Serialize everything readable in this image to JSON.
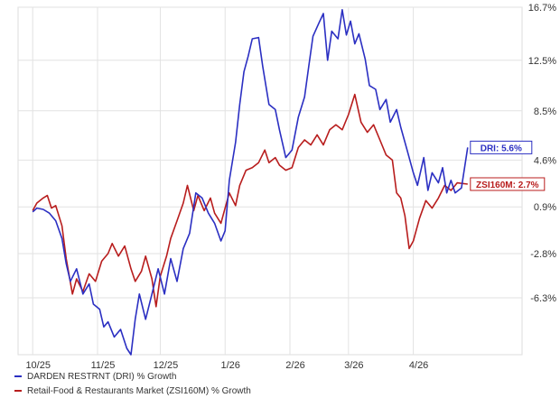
{
  "chart_data": {
    "type": "line",
    "title": "",
    "xlabel": "",
    "ylabel": "",
    "x_tick_labels": [
      "10/25",
      "11/25",
      "12/25",
      "1/26",
      "2/26",
      "3/26",
      "4/26"
    ],
    "y_tick_labels": [
      "16.7%",
      "12.5%",
      "8.5%",
      "4.6%",
      "0.9%",
      "-2.8%",
      "-6.3%"
    ],
    "y_tick_values": [
      16.7,
      12.5,
      8.5,
      4.6,
      0.9,
      -2.8,
      -6.3
    ],
    "ylim": [
      -10.8,
      16.7
    ],
    "grid": true,
    "legend_position": "bottom-left",
    "series": [
      {
        "name": "DARDEN RESTRNT (DRI) % Growth",
        "color": "#2b2fc2",
        "end_label": "DRI: 5.6%",
        "points": [
          [
            "2025-10-01",
            0.5
          ],
          [
            "2025-10-03",
            0.8
          ],
          [
            "2025-10-06",
            0.7
          ],
          [
            "2025-10-09",
            0.4
          ],
          [
            "2025-10-12",
            -0.2
          ],
          [
            "2025-10-15",
            -1.6
          ],
          [
            "2025-10-17",
            -3.6
          ],
          [
            "2025-10-19",
            -5.0
          ],
          [
            "2025-10-22",
            -4.0
          ],
          [
            "2025-10-25",
            -6.0
          ],
          [
            "2025-10-28",
            -5.2
          ],
          [
            "2025-10-30",
            -6.8
          ],
          [
            "2025-11-02",
            -7.2
          ],
          [
            "2025-11-04",
            -8.6
          ],
          [
            "2025-11-06",
            -8.2
          ],
          [
            "2025-11-09",
            -9.4
          ],
          [
            "2025-11-12",
            -8.8
          ],
          [
            "2025-11-15",
            -10.3
          ],
          [
            "2025-11-17",
            -10.8
          ],
          [
            "2025-11-19",
            -8.0
          ],
          [
            "2025-11-21",
            -6.0
          ],
          [
            "2025-11-24",
            -8.0
          ],
          [
            "2025-11-27",
            -6.0
          ],
          [
            "2025-11-30",
            -4.0
          ],
          [
            "2025-12-03",
            -6.0
          ],
          [
            "2025-12-06",
            -3.2
          ],
          [
            "2025-12-09",
            -5.0
          ],
          [
            "2025-12-12",
            -2.4
          ],
          [
            "2025-12-15",
            -1.2
          ],
          [
            "2025-12-18",
            2.0
          ],
          [
            "2025-12-21",
            1.6
          ],
          [
            "2025-12-24",
            0.4
          ],
          [
            "2025-12-27",
            -0.4
          ],
          [
            "2025-12-30",
            -1.8
          ],
          [
            "2026-01-01",
            -1.0
          ],
          [
            "2026-01-03",
            3.0
          ],
          [
            "2026-01-06",
            6.0
          ],
          [
            "2026-01-08",
            9.0
          ],
          [
            "2026-01-10",
            11.6
          ],
          [
            "2026-01-12",
            12.8
          ],
          [
            "2026-01-14",
            14.2
          ],
          [
            "2026-01-17",
            14.3
          ],
          [
            "2026-01-19",
            12.0
          ],
          [
            "2026-01-22",
            9.0
          ],
          [
            "2026-01-25",
            8.6
          ],
          [
            "2026-01-27",
            7.0
          ],
          [
            "2026-01-30",
            4.8
          ],
          [
            "2026-02-02",
            5.4
          ],
          [
            "2026-02-05",
            8.0
          ],
          [
            "2026-02-08",
            9.6
          ],
          [
            "2026-02-10",
            12.0
          ],
          [
            "2026-02-12",
            14.4
          ],
          [
            "2026-02-15",
            15.5
          ],
          [
            "2026-02-17",
            16.2
          ],
          [
            "2026-02-19",
            12.5
          ],
          [
            "2026-02-21",
            14.8
          ],
          [
            "2026-02-24",
            14.2
          ],
          [
            "2026-02-26",
            16.5
          ],
          [
            "2026-02-28",
            14.5
          ],
          [
            "2026-03-02",
            15.6
          ],
          [
            "2026-03-04",
            13.8
          ],
          [
            "2026-03-06",
            14.6
          ],
          [
            "2026-03-09",
            12.6
          ],
          [
            "2026-03-11",
            10.5
          ],
          [
            "2026-03-14",
            10.2
          ],
          [
            "2026-03-16",
            8.6
          ],
          [
            "2026-03-19",
            9.4
          ],
          [
            "2026-03-21",
            7.6
          ],
          [
            "2026-03-24",
            8.6
          ],
          [
            "2026-03-26",
            7.2
          ],
          [
            "2026-03-29",
            5.4
          ],
          [
            "2026-04-01",
            3.6
          ],
          [
            "2026-04-03",
            2.6
          ],
          [
            "2026-04-06",
            4.8
          ],
          [
            "2026-04-08",
            2.2
          ],
          [
            "2026-04-10",
            3.6
          ],
          [
            "2026-04-13",
            2.8
          ],
          [
            "2026-04-15",
            4.0
          ],
          [
            "2026-04-17",
            2.0
          ],
          [
            "2026-04-19",
            3.0
          ],
          [
            "2026-04-21",
            2.0
          ],
          [
            "2026-04-24",
            2.4
          ],
          [
            "2026-04-27",
            5.6
          ]
        ]
      },
      {
        "name": "Retail-Food & Restaurants Market (ZSI160M) % Growth",
        "color": "#b81d1d",
        "end_label": "ZSI160M: 2.7%",
        "points": [
          [
            "2025-10-01",
            0.6
          ],
          [
            "2025-10-03",
            1.2
          ],
          [
            "2025-10-06",
            1.6
          ],
          [
            "2025-10-08",
            1.8
          ],
          [
            "2025-10-10",
            0.8
          ],
          [
            "2025-10-12",
            1.0
          ],
          [
            "2025-10-15",
            -0.6
          ],
          [
            "2025-10-17",
            -3.2
          ],
          [
            "2025-10-20",
            -6.0
          ],
          [
            "2025-10-22",
            -4.8
          ],
          [
            "2025-10-25",
            -5.8
          ],
          [
            "2025-10-28",
            -4.4
          ],
          [
            "2025-10-31",
            -5.0
          ],
          [
            "2025-11-03",
            -3.4
          ],
          [
            "2025-11-06",
            -2.8
          ],
          [
            "2025-11-08",
            -2.0
          ],
          [
            "2025-11-11",
            -3.0
          ],
          [
            "2025-11-14",
            -2.2
          ],
          [
            "2025-11-17",
            -4.0
          ],
          [
            "2025-11-19",
            -5.0
          ],
          [
            "2025-11-22",
            -4.2
          ],
          [
            "2025-11-24",
            -3.0
          ],
          [
            "2025-11-27",
            -4.8
          ],
          [
            "2025-11-29",
            -7.0
          ],
          [
            "2025-12-01",
            -4.6
          ],
          [
            "2025-12-04",
            -3.0
          ],
          [
            "2025-12-06",
            -1.6
          ],
          [
            "2025-12-09",
            -0.2
          ],
          [
            "2025-12-12",
            1.2
          ],
          [
            "2025-12-14",
            2.6
          ],
          [
            "2025-12-17",
            0.6
          ],
          [
            "2025-12-19",
            1.8
          ],
          [
            "2025-12-22",
            0.6
          ],
          [
            "2025-12-25",
            1.6
          ],
          [
            "2025-12-27",
            0.4
          ],
          [
            "2025-12-30",
            -0.4
          ],
          [
            "2026-01-01",
            0.8
          ],
          [
            "2026-01-03",
            2.0
          ],
          [
            "2026-01-06",
            1.0
          ],
          [
            "2026-01-08",
            2.6
          ],
          [
            "2026-01-11",
            3.8
          ],
          [
            "2026-01-14",
            4.0
          ],
          [
            "2026-01-17",
            4.4
          ],
          [
            "2026-01-20",
            5.4
          ],
          [
            "2026-01-22",
            4.4
          ],
          [
            "2026-01-25",
            4.8
          ],
          [
            "2026-01-27",
            4.2
          ],
          [
            "2026-01-30",
            3.8
          ],
          [
            "2026-02-02",
            4.0
          ],
          [
            "2026-02-05",
            5.6
          ],
          [
            "2026-02-08",
            6.2
          ],
          [
            "2026-02-11",
            5.8
          ],
          [
            "2026-02-14",
            6.6
          ],
          [
            "2026-02-17",
            5.8
          ],
          [
            "2026-02-20",
            7.0
          ],
          [
            "2026-02-23",
            7.4
          ],
          [
            "2026-02-26",
            7.0
          ],
          [
            "2026-03-01",
            8.2
          ],
          [
            "2026-03-04",
            9.8
          ],
          [
            "2026-03-07",
            7.6
          ],
          [
            "2026-03-10",
            6.8
          ],
          [
            "2026-03-13",
            7.4
          ],
          [
            "2026-03-16",
            6.2
          ],
          [
            "2026-03-19",
            5.0
          ],
          [
            "2026-03-22",
            4.6
          ],
          [
            "2026-03-24",
            2.0
          ],
          [
            "2026-03-26",
            1.6
          ],
          [
            "2026-03-28",
            0.2
          ],
          [
            "2026-03-30",
            -2.4
          ],
          [
            "2026-04-01",
            -1.8
          ],
          [
            "2026-04-04",
            0.0
          ],
          [
            "2026-04-07",
            1.4
          ],
          [
            "2026-04-10",
            0.8
          ],
          [
            "2026-04-13",
            1.6
          ],
          [
            "2026-04-16",
            2.6
          ],
          [
            "2026-04-19",
            2.2
          ],
          [
            "2026-04-22",
            2.8
          ],
          [
            "2026-04-27",
            2.7
          ]
        ]
      }
    ]
  },
  "legend": [
    {
      "label": "DARDEN RESTRNT (DRI) % Growth",
      "color": "#2b2fc2"
    },
    {
      "label": "Retail-Food & Restaurants Market (ZSI160M) % Growth",
      "color": "#b81d1d"
    }
  ]
}
